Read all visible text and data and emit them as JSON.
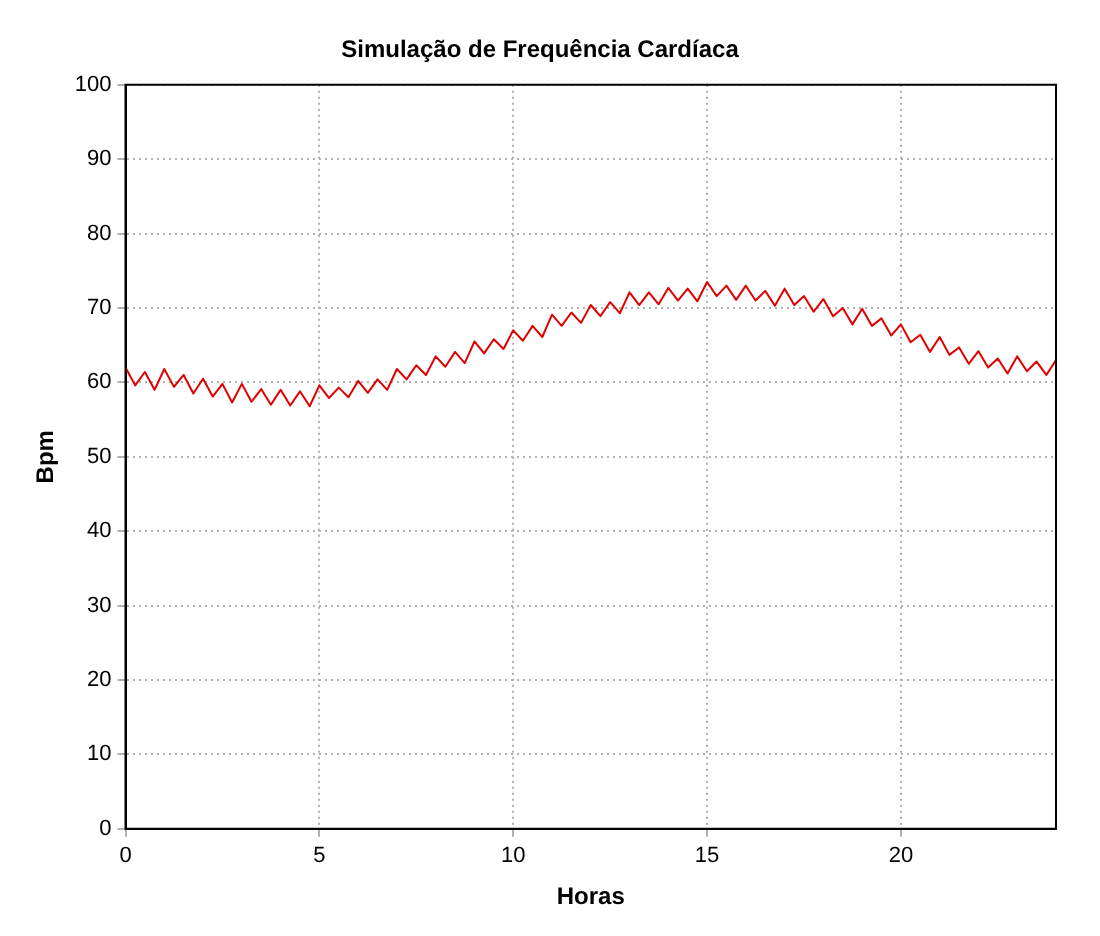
{
  "chart_data": {
    "type": "line",
    "title": "Simulação de Frequência Cardíaca",
    "xlabel": "Horas",
    "ylabel": "Bpm",
    "x": [
      0,
      0.25,
      0.5,
      0.75,
      1,
      1.25,
      1.5,
      1.75,
      2,
      2.25,
      2.5,
      2.75,
      3,
      3.25,
      3.5,
      3.75,
      4,
      4.25,
      4.5,
      4.75,
      5,
      5.25,
      5.5,
      5.75,
      6,
      6.25,
      6.5,
      6.75,
      7,
      7.25,
      7.5,
      7.75,
      8,
      8.25,
      8.5,
      8.75,
      9,
      9.25,
      9.5,
      9.75,
      10,
      10.25,
      10.5,
      10.75,
      11,
      11.25,
      11.5,
      11.75,
      12,
      12.25,
      12.5,
      12.75,
      13,
      13.25,
      13.5,
      13.75,
      14,
      14.25,
      14.5,
      14.75,
      15,
      15.25,
      15.5,
      15.75,
      16,
      16.25,
      16.5,
      16.75,
      17,
      17.25,
      17.5,
      17.75,
      18,
      18.25,
      18.5,
      18.75,
      19,
      19.25,
      19.5,
      19.75,
      20,
      20.25,
      20.5,
      20.75,
      21,
      21.25,
      21.5,
      21.75,
      22,
      22.25,
      22.5,
      22.75,
      23,
      23.25,
      23.5,
      23.75,
      24
    ],
    "series": [
      {
        "color": "#e00000",
        "values": [
          62,
          59.6,
          61.4,
          59,
          61.8,
          59.4,
          61,
          58.5,
          60.5,
          58.1,
          59.8,
          57.3,
          59.8,
          57.4,
          59.1,
          57,
          59,
          56.9,
          58.8,
          56.8,
          59.6,
          57.9,
          59.3,
          58,
          60.2,
          58.6,
          60.4,
          59,
          61.8,
          60.4,
          62.3,
          61,
          63.5,
          62.1,
          64.1,
          62.6,
          65.5,
          63.9,
          65.8,
          64.5,
          67,
          65.6,
          67.6,
          66.1,
          69.1,
          67.6,
          69.4,
          68,
          70.4,
          68.9,
          70.8,
          69.3,
          72.1,
          70.4,
          72.1,
          70.5,
          72.7,
          71,
          72.6,
          70.9,
          73.5,
          71.6,
          73,
          71.1,
          73,
          71,
          72.3,
          70.3,
          72.6,
          70.4,
          71.6,
          69.5,
          71.2,
          68.9,
          70,
          67.8,
          69.9,
          67.6,
          68.6,
          66.3,
          67.8,
          65.4,
          66.4,
          64.1,
          66.1,
          63.7,
          64.7,
          62.5,
          64.2,
          62,
          63.2,
          61.2,
          63.5,
          61.5,
          62.8,
          61,
          63
        ]
      }
    ],
    "xlim": [
      0,
      24
    ],
    "xticks": [
      0,
      5,
      10,
      15,
      20
    ],
    "ylim": [
      0,
      100
    ],
    "yticks": [
      0,
      10,
      20,
      30,
      40,
      50,
      60,
      70,
      80,
      90,
      100
    ],
    "grid": true,
    "legend": false,
    "marker": "none",
    "line_style": "solid"
  }
}
